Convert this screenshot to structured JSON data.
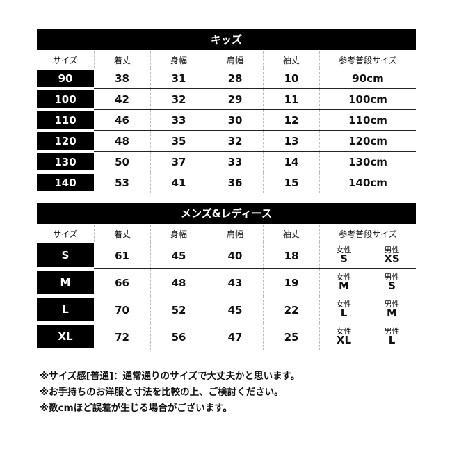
{
  "kids": {
    "title": "キッズ",
    "headers": [
      "サイズ",
      "着丈",
      "身幅",
      "肩幅",
      "袖丈",
      "参考普段サイズ"
    ],
    "rows": [
      [
        "90",
        "38",
        "31",
        "28",
        "10",
        "90cm"
      ],
      [
        "100",
        "42",
        "32",
        "29",
        "11",
        "100cm"
      ],
      [
        "110",
        "46",
        "33",
        "30",
        "12",
        "110cm"
      ],
      [
        "120",
        "48",
        "35",
        "32",
        "13",
        "120cm"
      ],
      [
        "130",
        "50",
        "37",
        "33",
        "14",
        "130cm"
      ],
      [
        "140",
        "53",
        "41",
        "36",
        "15",
        "140cm"
      ]
    ]
  },
  "adult": {
    "title": "メンズ&レディース",
    "headers": [
      "サイズ",
      "着丈",
      "身幅",
      "肩幅",
      "袖丈",
      "参考普段サイズ"
    ],
    "female_label": "女性",
    "male_label": "男性",
    "rows": [
      [
        "S",
        "61",
        "45",
        "40",
        "18",
        "S",
        "XS"
      ],
      [
        "M",
        "66",
        "48",
        "43",
        "19",
        "M",
        "S"
      ],
      [
        "L",
        "70",
        "52",
        "45",
        "22",
        "L",
        "M"
      ],
      [
        "XL",
        "72",
        "56",
        "47",
        "25",
        "XL",
        "L"
      ]
    ]
  },
  "notes": [
    "※サイズ感[普通]：通常通りのサイズで大丈夫かと思います。",
    "※お手持ちのお洋服と寸法を比較の上、ご検討ください。",
    "※数cmほど誤差が生じる場合がございます。"
  ]
}
